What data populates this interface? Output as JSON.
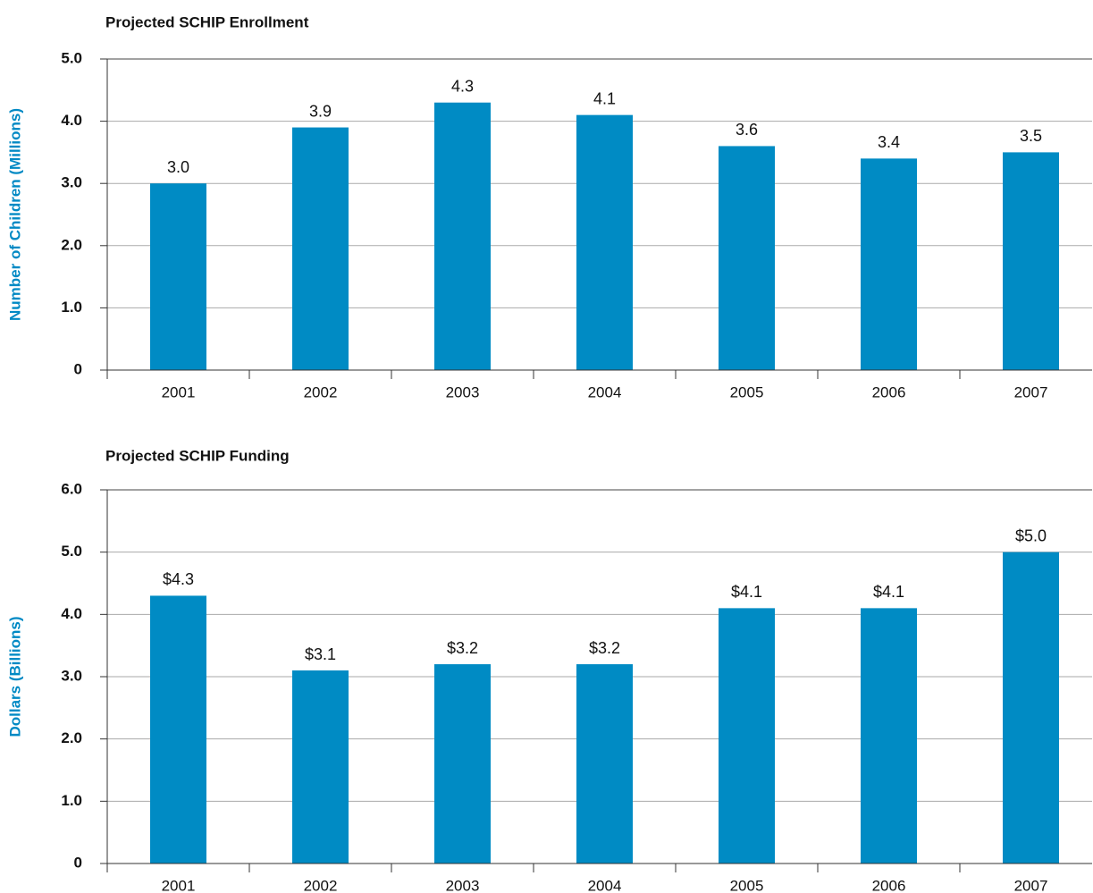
{
  "chart_data": [
    {
      "type": "bar",
      "title": "Projected SCHIP Enrollment",
      "y_label": "Number of Children (Millions)",
      "categories": [
        "2001",
        "2002",
        "2003",
        "2004",
        "2005",
        "2006",
        "2007"
      ],
      "values": [
        3.0,
        3.9,
        4.3,
        4.1,
        3.6,
        3.4,
        3.5
      ],
      "value_labels": [
        "3.0",
        "3.9",
        "4.3",
        "4.1",
        "3.6",
        "3.4",
        "3.5"
      ],
      "color": "#008bc4",
      "ylim": [
        0,
        5
      ],
      "yticks": [
        0,
        {
          "value": 1,
          "label": "1.0"
        },
        {
          "value": 2,
          "label": "2.0"
        },
        {
          "value": 3,
          "label": "3.0"
        },
        {
          "value": 4,
          "label": "4.0"
        },
        {
          "value": 5,
          "label": "5.0"
        }
      ],
      "grid": true
    },
    {
      "type": "bar",
      "title": "Projected SCHIP Funding",
      "y_label": "Dollars (Billions)",
      "categories": [
        "2001",
        "2002",
        "2003",
        "2004",
        "2005",
        "2006",
        "2007"
      ],
      "values": [
        4.3,
        3.1,
        3.2,
        3.2,
        4.1,
        4.1,
        5.0
      ],
      "value_labels": [
        "$4.3",
        "$3.1",
        "$3.2",
        "$3.2",
        "$4.1",
        "$4.1",
        "$5.0"
      ],
      "color": "#008bc4",
      "ylim": [
        0,
        6
      ],
      "yticks": [
        0,
        {
          "value": 1,
          "label": "1.0"
        },
        {
          "value": 2,
          "label": "2.0"
        },
        {
          "value": 3,
          "label": "3.0"
        },
        {
          "value": 4,
          "label": "4.0"
        },
        {
          "value": 5,
          "label": "5.0"
        },
        {
          "value": 6,
          "label": "6.0"
        }
      ],
      "grid": true
    }
  ]
}
